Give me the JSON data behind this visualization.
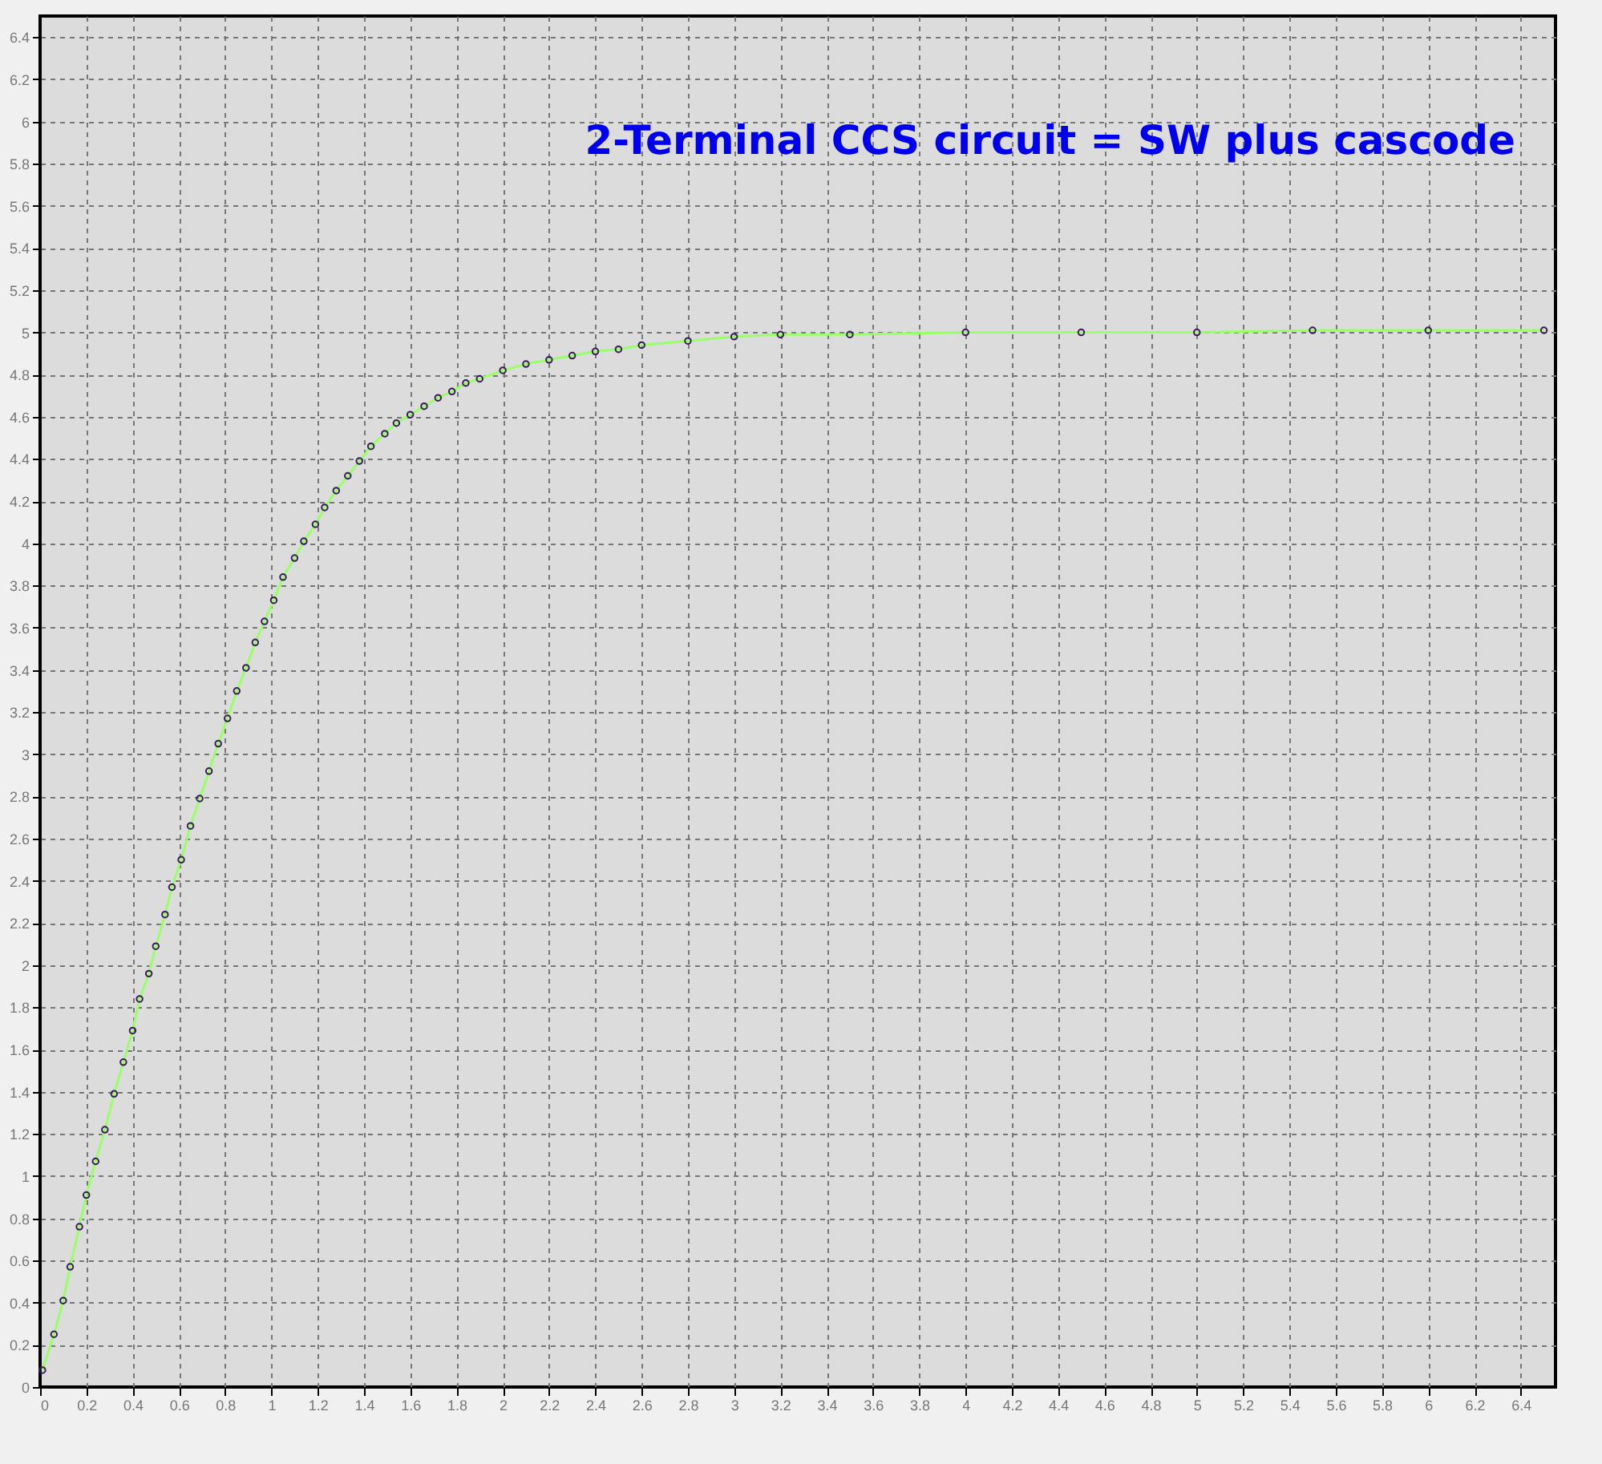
{
  "chart_data": {
    "type": "line",
    "title": "2-Terminal CCS  circuit = SW plus cascode",
    "x": [
      0.01,
      0.06,
      0.1,
      0.13,
      0.17,
      0.2,
      0.24,
      0.28,
      0.32,
      0.36,
      0.4,
      0.43,
      0.47,
      0.5,
      0.54,
      0.57,
      0.61,
      0.65,
      0.69,
      0.73,
      0.77,
      0.81,
      0.85,
      0.89,
      0.93,
      0.97,
      1.01,
      1.05,
      1.1,
      1.14,
      1.19,
      1.23,
      1.28,
      1.33,
      1.38,
      1.43,
      1.49,
      1.54,
      1.6,
      1.66,
      1.72,
      1.78,
      1.84,
      1.9,
      2.0,
      2.1,
      2.2,
      2.3,
      2.4,
      2.5,
      2.6,
      2.8,
      3.0,
      3.2,
      3.5,
      4.0,
      4.5,
      5.0,
      5.5,
      6.0,
      6.5
    ],
    "series": [
      {
        "color": "#99ff66",
        "values": [
          0.08,
          0.25,
          0.41,
          0.57,
          0.76,
          0.91,
          1.07,
          1.22,
          1.39,
          1.54,
          1.69,
          1.84,
          1.96,
          2.09,
          2.24,
          2.37,
          2.5,
          2.66,
          2.79,
          2.92,
          3.05,
          3.17,
          3.3,
          3.41,
          3.53,
          3.63,
          3.73,
          3.84,
          3.93,
          4.01,
          4.09,
          4.17,
          4.25,
          4.32,
          4.39,
          4.46,
          4.52,
          4.57,
          4.61,
          4.65,
          4.69,
          4.72,
          4.76,
          4.78,
          4.82,
          4.85,
          4.87,
          4.89,
          4.91,
          4.92,
          4.94,
          4.96,
          4.98,
          4.99,
          4.99,
          5.0,
          5.0,
          5.0,
          5.01,
          5.01,
          5.01
        ]
      }
    ],
    "xlim": [
      0,
      6.55
    ],
    "ylim": [
      0,
      6.5
    ],
    "xticks": [
      0,
      0.2,
      0.4,
      0.6,
      0.8,
      1,
      1.2,
      1.4,
      1.6,
      1.8,
      2,
      2.2,
      2.4,
      2.6,
      2.8,
      3,
      3.2,
      3.4,
      3.6,
      3.8,
      4,
      4.2,
      4.4,
      4.6,
      4.8,
      5,
      5.2,
      5.4,
      5.6,
      5.8,
      6,
      6.2,
      6.4
    ],
    "yticks": [
      0,
      0.2,
      0.4,
      0.6,
      0.8,
      1,
      1.2,
      1.4,
      1.6,
      1.8,
      2,
      2.2,
      2.4,
      2.6,
      2.8,
      3,
      3.2,
      3.4,
      3.6,
      3.8,
      4,
      4.2,
      4.4,
      4.6,
      4.8,
      5,
      5.2,
      5.4,
      5.6,
      5.8,
      6,
      6.2,
      6.4
    ],
    "grid": true,
    "marker": "circle",
    "line_style": "solid"
  }
}
